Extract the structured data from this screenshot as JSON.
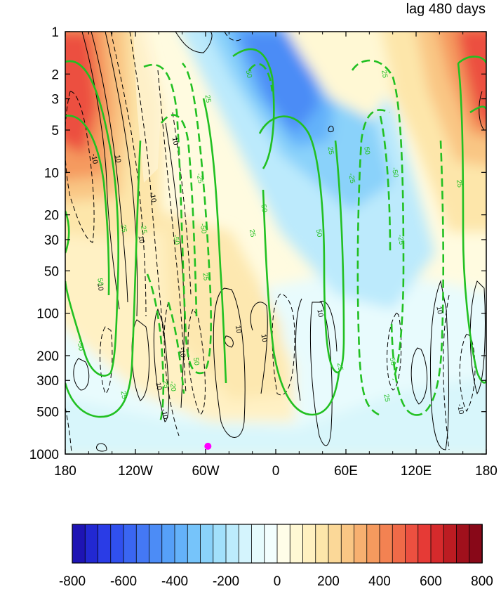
{
  "chart_data": {
    "type": "heatmap",
    "title": "lag 480 days",
    "x_ticks": [
      {
        "value": -180,
        "label": "180"
      },
      {
        "value": -120,
        "label": "120W"
      },
      {
        "value": -60,
        "label": "60W"
      },
      {
        "value": 0,
        "label": "0"
      },
      {
        "value": 60,
        "label": "60E"
      },
      {
        "value": 120,
        "label": "120E"
      },
      {
        "value": 180,
        "label": "180"
      }
    ],
    "xlim": [
      -180,
      180
    ],
    "y_ticks": [
      1,
      2,
      3,
      5,
      10,
      20,
      30,
      50,
      100,
      200,
      300,
      500,
      1000
    ],
    "ylim": [
      1000,
      1
    ],
    "y_scale": "log",
    "y_inverted": true,
    "colorbar": {
      "min": -800,
      "max": 800,
      "step": 50,
      "tick_labels": [
        "-800",
        "-600",
        "-400",
        "-200",
        "0",
        "200",
        "400",
        "600",
        "800"
      ],
      "tick_values": [
        -800,
        -600,
        -400,
        -200,
        0,
        200,
        400,
        600,
        800
      ],
      "colors": [
        "#1e14b4",
        "#2228d2",
        "#2a3ce6",
        "#3050ee",
        "#3a66f2",
        "#4478f4",
        "#4c8cf6",
        "#56a0f8",
        "#64b2fa",
        "#76c4fa",
        "#8ad2fa",
        "#a2e0fb",
        "#bcebfc",
        "#d4f4fd",
        "#e6fbfd",
        "#f2fefe",
        "#fffde8",
        "#fff8d4",
        "#fff0c0",
        "#fde6aa",
        "#fbd898",
        "#f9c684",
        "#f7b070",
        "#f59a5e",
        "#f38252",
        "#f06a48",
        "#ec5040",
        "#e63a36",
        "#d62a2c",
        "#bc1c22",
        "#a0101c",
        "#880818"
      ]
    },
    "shaded_field_regions": [
      {
        "lon": -170,
        "pres": 5,
        "value": 550
      },
      {
        "lon": 175,
        "pres": 3,
        "value": 600
      },
      {
        "lon": 5,
        "pres": 3,
        "value": -450
      },
      {
        "lon": 20,
        "pres": 50,
        "value": -200
      },
      {
        "lon": -30,
        "pres": 300,
        "value": 50
      },
      {
        "lon": -100,
        "pres": 700,
        "value": -50
      }
    ],
    "contours_black": [
      {
        "lon": -155,
        "pres": 8,
        "label": "-10",
        "style": "dashed"
      },
      {
        "lon": -135,
        "pres": 8,
        "label": "10",
        "style": "solid"
      },
      {
        "lon": -105,
        "pres": 15,
        "label": "-10",
        "style": "dashed"
      },
      {
        "lon": -115,
        "pres": 30,
        "label": "10",
        "style": "solid"
      },
      {
        "lon": -150,
        "pres": 65,
        "label": "10",
        "style": "solid"
      },
      {
        "lon": -86,
        "pres": 6,
        "label": "10",
        "style": "solid"
      },
      {
        "lon": -80,
        "pres": 190,
        "label": "-10",
        "style": "dashed"
      },
      {
        "lon": -100,
        "pres": 330,
        "label": "10",
        "style": "solid"
      },
      {
        "lon": -95,
        "pres": 520,
        "label": "-10",
        "style": "dashed"
      },
      {
        "lon": -32,
        "pres": 130,
        "label": "10",
        "style": "solid"
      },
      {
        "lon": -10,
        "pres": 150,
        "label": "10",
        "style": "solid"
      },
      {
        "lon": 38,
        "pres": 100,
        "label": "10",
        "style": "solid"
      },
      {
        "lon": 140,
        "pres": 95,
        "label": "10",
        "style": "solid"
      },
      {
        "lon": 158,
        "pres": 480,
        "label": "-10",
        "style": "dashed"
      }
    ],
    "contours_green": [
      {
        "lon": -130,
        "pres": 25,
        "label": "25",
        "style": "solid"
      },
      {
        "lon": -150,
        "pres": 60,
        "label": "50",
        "style": "solid"
      },
      {
        "lon": -167,
        "pres": 170,
        "label": "-50",
        "style": "solid"
      },
      {
        "lon": -113,
        "pres": 25,
        "label": "-25",
        "style": "dashed"
      },
      {
        "lon": -85,
        "pres": 30,
        "label": "-50",
        "style": "dashed"
      },
      {
        "lon": -65,
        "pres": 11,
        "label": "-25",
        "style": "dashed"
      },
      {
        "lon": -62,
        "pres": 25,
        "label": "-50",
        "style": "dashed"
      },
      {
        "lon": -60,
        "pres": 55,
        "label": "25",
        "style": "solid"
      },
      {
        "lon": -94,
        "pres": 320,
        "label": "25",
        "style": "solid"
      },
      {
        "lon": -88,
        "pres": 330,
        "label": "-20",
        "style": "dashed"
      },
      {
        "lon": -68,
        "pres": 220,
        "label": "50",
        "style": "dashed"
      },
      {
        "lon": -130,
        "pres": 380,
        "label": "25",
        "style": "solid"
      },
      {
        "lon": -58,
        "pres": 3,
        "label": "25",
        "style": "solid"
      },
      {
        "lon": -23,
        "pres": 2,
        "label": "50",
        "style": "solid"
      },
      {
        "lon": -10,
        "pres": 18,
        "label": "50",
        "style": "solid"
      },
      {
        "lon": -20,
        "pres": 27,
        "label": "25",
        "style": "solid"
      },
      {
        "lon": 47,
        "pres": 7,
        "label": "25",
        "style": "solid"
      },
      {
        "lon": 37,
        "pres": 27,
        "label": "50",
        "style": "solid"
      },
      {
        "lon": 55,
        "pres": 240,
        "label": "25",
        "style": "solid"
      },
      {
        "lon": 65,
        "pres": 11,
        "label": "-25",
        "style": "dashed"
      },
      {
        "lon": 78,
        "pres": 7,
        "label": "50",
        "style": "solid"
      },
      {
        "lon": 102,
        "pres": 10,
        "label": "-50",
        "style": "dashed"
      },
      {
        "lon": 107,
        "pres": 30,
        "label": "-25",
        "style": "dashed"
      },
      {
        "lon": 100,
        "pres": 220,
        "label": "50",
        "style": "dashed"
      },
      {
        "lon": 93,
        "pres": 2,
        "label": "25",
        "style": "solid"
      },
      {
        "lon": 95,
        "pres": 400,
        "label": "25",
        "style": "solid"
      },
      {
        "lon": 157,
        "pres": 12,
        "label": "25",
        "style": "solid"
      }
    ],
    "marker": {
      "lon": -58,
      "pres": 880,
      "color": "#ff00ff"
    },
    "colors": {
      "positive_contour": "#000000",
      "green_contour": "#22c022",
      "marker": "#ff00ff"
    }
  }
}
